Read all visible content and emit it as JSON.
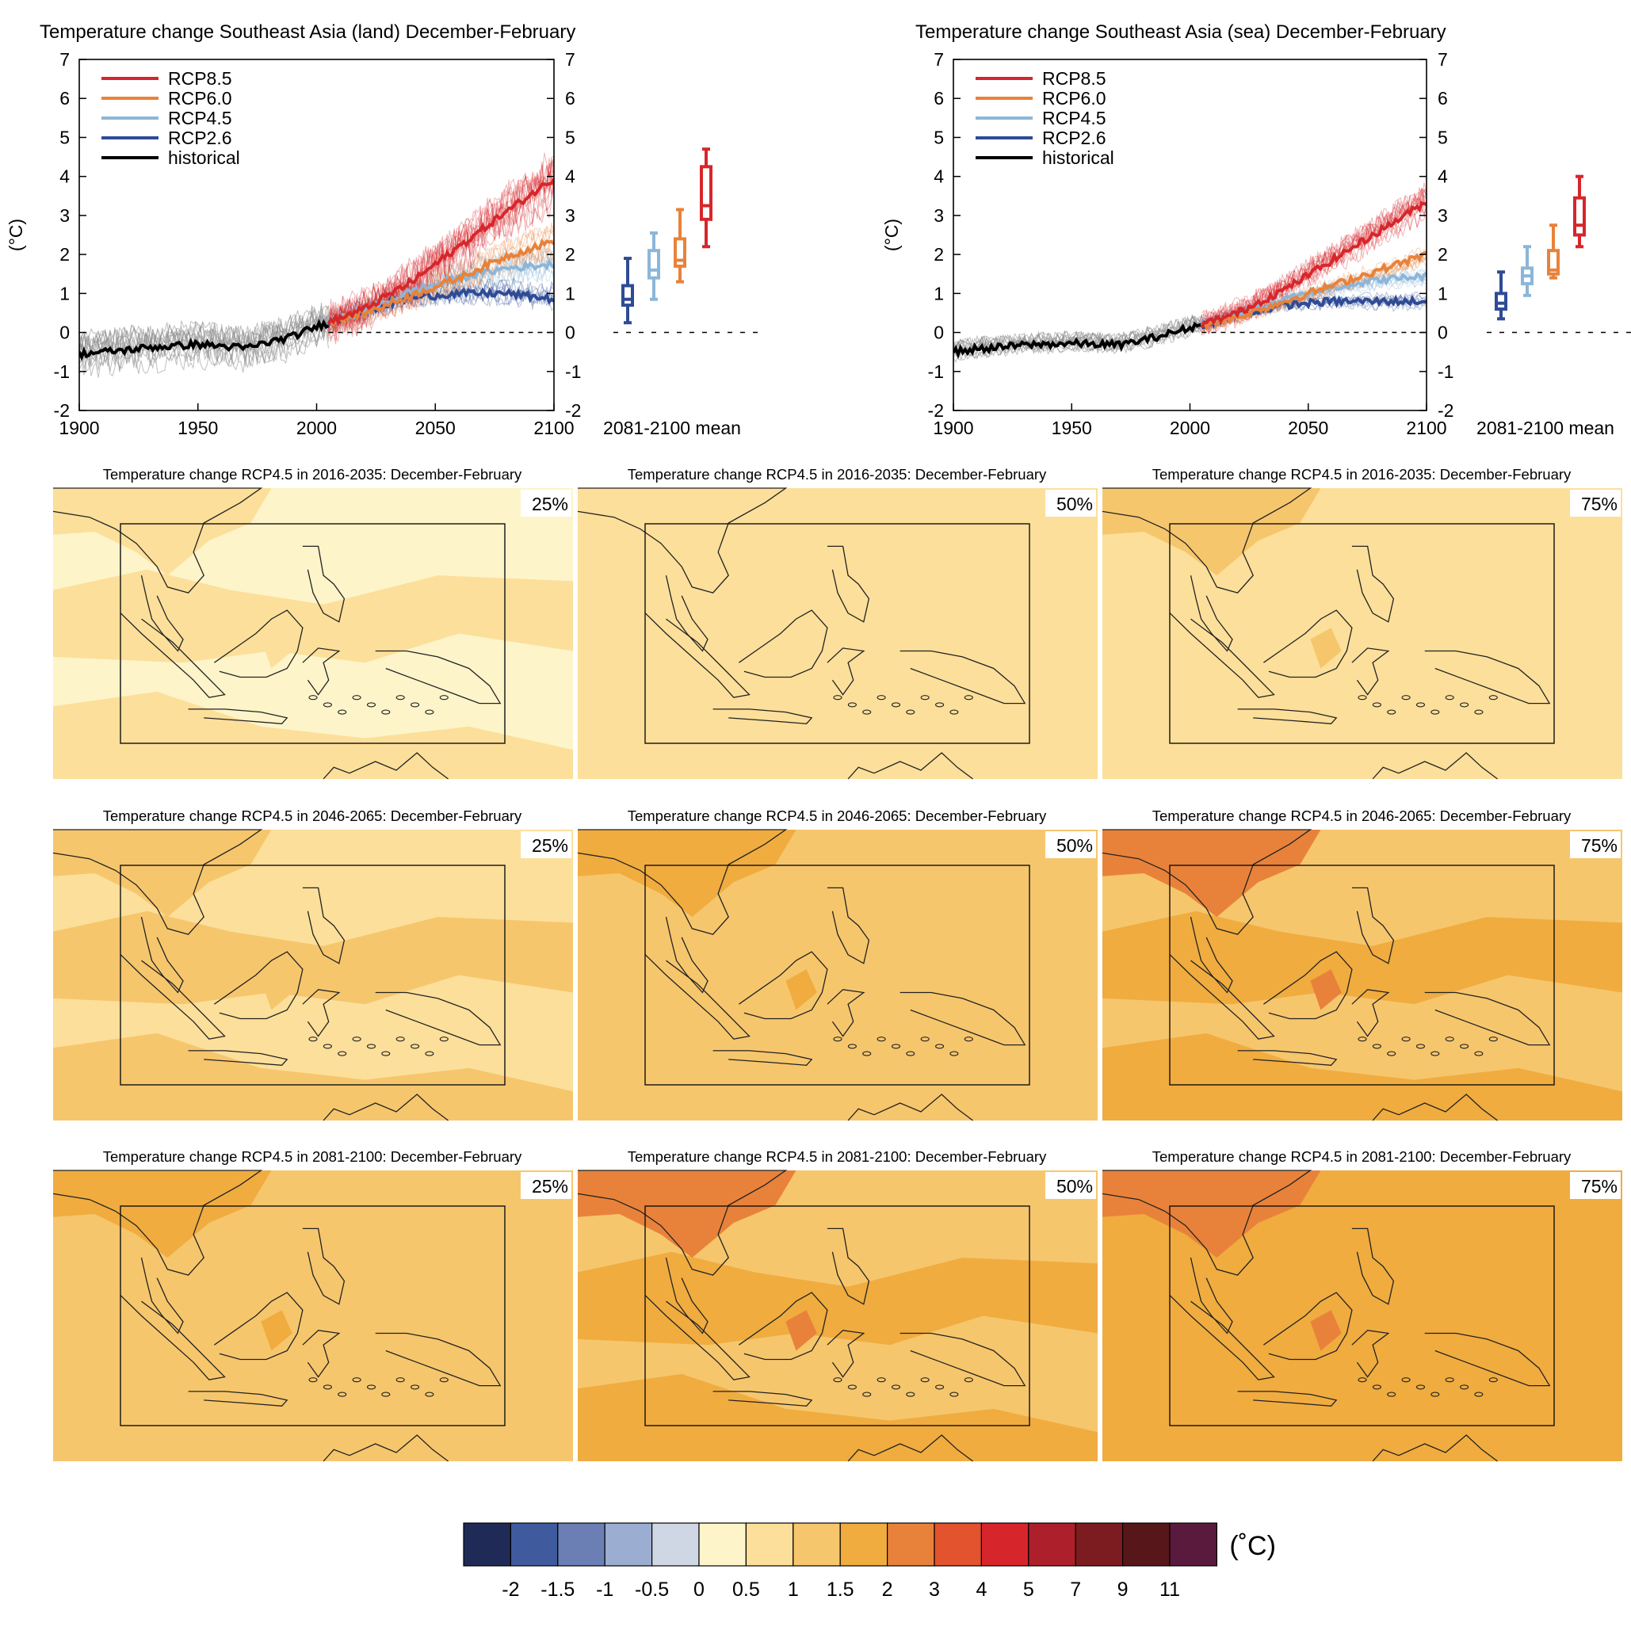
{
  "colors": {
    "rcp85": "#d7262b",
    "rcp60": "#e8823a",
    "rcp45": "#8cb6d9",
    "rcp26": "#2f4b95",
    "historical": "#000000",
    "historical_spread": "#8a8a8a"
  },
  "chart_data": [
    {
      "type": "line",
      "id": "land",
      "title": "Temperature change Southeast Asia (land) December-February",
      "ylabel": "(°C)",
      "xlim": [
        1900,
        2100
      ],
      "ylim": [
        -2,
        7
      ],
      "xticks": [
        "1900",
        "1950",
        "2000",
        "2050",
        "2100"
      ],
      "yticks": [
        "-2",
        "-1",
        "0",
        "1",
        "2",
        "3",
        "4",
        "5",
        "6",
        "7"
      ],
      "legend_position": "top-left",
      "legend": [
        "RCP8.5",
        "RCP6.0",
        "RCP4.5",
        "RCP2.6",
        "historical"
      ],
      "series": [
        {
          "name": "historical",
          "key": "historical",
          "x": [
            1900,
            1910,
            1920,
            1930,
            1940,
            1950,
            1960,
            1970,
            1980,
            1990,
            2000,
            2005
          ],
          "values": [
            -0.55,
            -0.5,
            -0.45,
            -0.38,
            -0.35,
            -0.3,
            -0.35,
            -0.4,
            -0.25,
            -0.1,
            0.15,
            0.25
          ],
          "spread": 0.75
        },
        {
          "name": "RCP2.6",
          "key": "rcp26",
          "x": [
            2005,
            2020,
            2040,
            2060,
            2080,
            2100
          ],
          "values": [
            0.25,
            0.55,
            0.9,
            1.0,
            1.0,
            0.85
          ],
          "spread": 0.5
        },
        {
          "name": "RCP4.5",
          "key": "rcp45",
          "x": [
            2005,
            2020,
            2040,
            2060,
            2080,
            2100
          ],
          "values": [
            0.25,
            0.55,
            1.05,
            1.4,
            1.65,
            1.75
          ],
          "spread": 0.6
        },
        {
          "name": "RCP6.0",
          "key": "rcp60",
          "x": [
            2005,
            2020,
            2040,
            2060,
            2080,
            2100
          ],
          "values": [
            0.25,
            0.5,
            0.95,
            1.4,
            1.95,
            2.35
          ],
          "spread": 0.6
        },
        {
          "name": "RCP8.5",
          "key": "rcp85",
          "x": [
            2005,
            2020,
            2040,
            2060,
            2080,
            2100
          ],
          "values": [
            0.25,
            0.6,
            1.3,
            2.2,
            3.1,
            3.95
          ],
          "spread": 1.0
        }
      ],
      "boxes_label": "2081-2100 mean",
      "boxes": [
        {
          "name": "RCP2.6",
          "key": "rcp26",
          "min": 0.25,
          "q1": 0.7,
          "median": 0.85,
          "q3": 1.2,
          "max": 1.9
        },
        {
          "name": "RCP4.5",
          "key": "rcp45",
          "min": 0.85,
          "q1": 1.4,
          "median": 1.6,
          "q3": 2.1,
          "max": 2.55
        },
        {
          "name": "RCP6.0",
          "key": "rcp60",
          "min": 1.3,
          "q1": 1.7,
          "median": 1.85,
          "q3": 2.4,
          "max": 3.15
        },
        {
          "name": "RCP8.5",
          "key": "rcp85",
          "min": 2.2,
          "q1": 2.9,
          "median": 3.25,
          "q3": 4.25,
          "max": 4.7
        }
      ]
    },
    {
      "type": "line",
      "id": "sea",
      "title": "Temperature change Southeast Asia (sea) December-February",
      "ylabel": "(°C)",
      "xlim": [
        1900,
        2100
      ],
      "ylim": [
        -2,
        7
      ],
      "xticks": [
        "1900",
        "1950",
        "2000",
        "2050",
        "2100"
      ],
      "yticks": [
        "-2",
        "-1",
        "0",
        "1",
        "2",
        "3",
        "4",
        "5",
        "6",
        "7"
      ],
      "legend_position": "top-left",
      "legend": [
        "RCP8.5",
        "RCP6.0",
        "RCP4.5",
        "RCP2.6",
        "historical"
      ],
      "series": [
        {
          "name": "historical",
          "key": "historical",
          "x": [
            1900,
            1910,
            1920,
            1930,
            1940,
            1950,
            1960,
            1970,
            1980,
            1990,
            2000,
            2005
          ],
          "values": [
            -0.5,
            -0.42,
            -0.38,
            -0.32,
            -0.3,
            -0.28,
            -0.3,
            -0.32,
            -0.2,
            -0.05,
            0.12,
            0.2
          ],
          "spread": 0.35
        },
        {
          "name": "RCP2.6",
          "key": "rcp26",
          "x": [
            2005,
            2020,
            2040,
            2060,
            2080,
            2100
          ],
          "values": [
            0.2,
            0.45,
            0.7,
            0.8,
            0.8,
            0.8
          ],
          "spread": 0.3
        },
        {
          "name": "RCP4.5",
          "key": "rcp45",
          "x": [
            2005,
            2020,
            2040,
            2060,
            2080,
            2100
          ],
          "values": [
            0.2,
            0.45,
            0.85,
            1.15,
            1.35,
            1.45
          ],
          "spread": 0.35
        },
        {
          "name": "RCP6.0",
          "key": "rcp60",
          "x": [
            2005,
            2020,
            2040,
            2060,
            2080,
            2100
          ],
          "values": [
            0.2,
            0.4,
            0.8,
            1.2,
            1.6,
            2.0
          ],
          "spread": 0.35
        },
        {
          "name": "RCP8.5",
          "key": "rcp85",
          "x": [
            2005,
            2020,
            2040,
            2060,
            2080,
            2100
          ],
          "values": [
            0.2,
            0.5,
            1.1,
            1.85,
            2.6,
            3.35
          ],
          "spread": 0.6
        }
      ],
      "boxes_label": "2081-2100 mean",
      "boxes": [
        {
          "name": "RCP2.6",
          "key": "rcp26",
          "min": 0.35,
          "q1": 0.6,
          "median": 0.75,
          "q3": 1.0,
          "max": 1.55
        },
        {
          "name": "RCP4.5",
          "key": "rcp45",
          "min": 0.95,
          "q1": 1.25,
          "median": 1.45,
          "q3": 1.65,
          "max": 2.2
        },
        {
          "name": "RCP6.0",
          "key": "rcp60",
          "min": 1.4,
          "q1": 1.5,
          "median": 1.6,
          "q3": 2.1,
          "max": 2.75
        },
        {
          "name": "RCP8.5",
          "key": "rcp85",
          "min": 2.2,
          "q1": 2.5,
          "median": 2.75,
          "q3": 3.45,
          "max": 4.0
        }
      ]
    },
    {
      "type": "heatmap",
      "id": "maps",
      "map_titles": [
        "Temperature change RCP4.5 in 2016-2035: December-February",
        "Temperature change RCP4.5 in 2046-2065: December-February",
        "Temperature change RCP4.5 in 2081-2100: December-February"
      ],
      "percentiles": [
        "25%",
        "50%",
        "75%"
      ],
      "panels": [
        {
          "row": 0,
          "col": 0,
          "base": "#fdf4c9",
          "patch": "#fcdf9a",
          "hot": "#fcdf9a"
        },
        {
          "row": 0,
          "col": 1,
          "base": "#fcdf9a",
          "patch": "#fcdf9a",
          "hot": "#fcdf9a"
        },
        {
          "row": 0,
          "col": 2,
          "base": "#fcdf9a",
          "patch": "#fcdf9a",
          "hot": "#f6c66d"
        },
        {
          "row": 1,
          "col": 0,
          "base": "#fcdf9a",
          "patch": "#f6c66d",
          "hot": "#f6c66d"
        },
        {
          "row": 1,
          "col": 1,
          "base": "#f6c66d",
          "patch": "#f6c66d",
          "hot": "#f0ac3f"
        },
        {
          "row": 1,
          "col": 2,
          "base": "#f6c66d",
          "patch": "#f0ac3f",
          "hot": "#e8823a"
        },
        {
          "row": 2,
          "col": 0,
          "base": "#f6c66d",
          "patch": "#f6c66d",
          "hot": "#f0ac3f"
        },
        {
          "row": 2,
          "col": 1,
          "base": "#f6c66d",
          "patch": "#f0ac3f",
          "hot": "#e8823a"
        },
        {
          "row": 2,
          "col": 2,
          "base": "#f0ac3f",
          "patch": "#f0ac3f",
          "hot": "#e8823a"
        }
      ],
      "colorbar": {
        "unit": "(˚C)",
        "colors": [
          "#1f2a56",
          "#3f5b9e",
          "#6b7fb5",
          "#9badd1",
          "#cfd6e4",
          "#fdf4c9",
          "#fcdf9a",
          "#f6c66d",
          "#f0ac3f",
          "#e8823a",
          "#e2532e",
          "#d7262b",
          "#ad1f2b",
          "#7d1c20",
          "#57161a",
          "#5a1a3e"
        ],
        "labels": [
          "-2",
          "-1.5",
          "-1",
          "-0.5",
          "0",
          "0.5",
          "1",
          "1.5",
          "2",
          "3",
          "4",
          "5",
          "7",
          "9",
          "11"
        ]
      }
    }
  ]
}
